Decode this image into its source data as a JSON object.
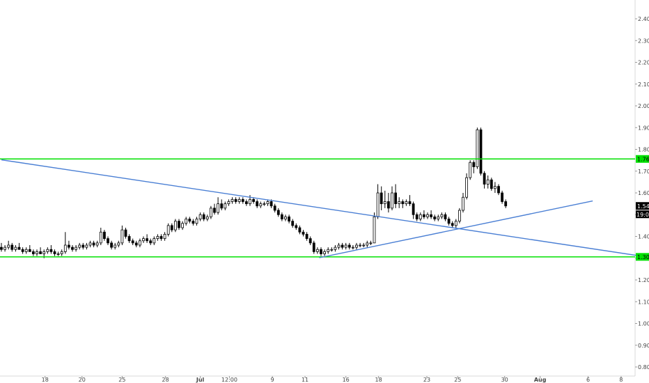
{
  "colors": {
    "background": "#ffffff",
    "support_resistance": "#00e000",
    "trendline": "#4a7fd4",
    "candle_body": "#000000",
    "axis": "#d8d8d8"
  },
  "chart_data": {
    "type": "candlestick",
    "ylim": [
      0.78,
      2.48
    ],
    "y_ticks": [
      0.8,
      0.9,
      1.0,
      1.1,
      1.2,
      1.3,
      1.4,
      1.5,
      1.6,
      1.7,
      1.8,
      1.9,
      2.0,
      2.1,
      2.2,
      2.3,
      2.4
    ],
    "y_tick_labels": [
      "0.80",
      "0.90",
      "1.00",
      "1.10",
      "1.20",
      "1.30",
      "1.40",
      "1.50",
      "1.60",
      "1.70",
      "1.80",
      "1.90",
      "2.00",
      "2.10",
      "2.20",
      "2.30",
      "2.40"
    ],
    "x_tick_labels": [
      "18",
      "20",
      "25",
      "28",
      "Jul",
      "12:00",
      "9",
      "11",
      "16",
      "18",
      "23",
      "25",
      "30",
      "Aug",
      "6",
      "8"
    ],
    "x_tick_bars": [
      12.3,
      22.7,
      34.0,
      46.2,
      56.0,
      64.2,
      76.3,
      85.5,
      97.0,
      106.2,
      119.8,
      128.5,
      141.7,
      151.7,
      165.2,
      174.5
    ],
    "x_range": [
      0,
      185
    ],
    "horizontal_lines": [
      {
        "label": "1.76",
        "price": 1.756
      },
      {
        "label": "1.30",
        "price": 1.306
      }
    ],
    "trendlines": [
      {
        "name": "descending",
        "from": [
          0,
          1.752
        ],
        "to": [
          182,
          1.305
        ]
      },
      {
        "name": "ascending",
        "from": [
          89.5,
          1.302
        ],
        "to": [
          166.5,
          1.563
        ]
      }
    ],
    "last_price_labels": [
      "1.54",
      "19:02"
    ],
    "candles": [
      [
        1.35,
        1.37,
        1.33,
        1.34
      ],
      [
        1.34,
        1.36,
        1.33,
        1.35
      ],
      [
        1.35,
        1.38,
        1.34,
        1.36
      ],
      [
        1.36,
        1.37,
        1.33,
        1.34
      ],
      [
        1.34,
        1.36,
        1.33,
        1.35
      ],
      [
        1.35,
        1.37,
        1.34,
        1.34
      ],
      [
        1.34,
        1.35,
        1.32,
        1.33
      ],
      [
        1.33,
        1.35,
        1.32,
        1.34
      ],
      [
        1.34,
        1.36,
        1.33,
        1.33
      ],
      [
        1.33,
        1.34,
        1.31,
        1.32
      ],
      [
        1.32,
        1.34,
        1.31,
        1.33
      ],
      [
        1.33,
        1.35,
        1.32,
        1.32
      ],
      [
        1.32,
        1.34,
        1.3,
        1.33
      ],
      [
        1.33,
        1.35,
        1.32,
        1.34
      ],
      [
        1.34,
        1.36,
        1.32,
        1.33
      ],
      [
        1.33,
        1.34,
        1.31,
        1.32
      ],
      [
        1.32,
        1.33,
        1.31,
        1.32
      ],
      [
        1.32,
        1.34,
        1.31,
        1.33
      ],
      [
        1.33,
        1.42,
        1.32,
        1.36
      ],
      [
        1.36,
        1.38,
        1.34,
        1.35
      ],
      [
        1.35,
        1.36,
        1.33,
        1.34
      ],
      [
        1.34,
        1.36,
        1.33,
        1.35
      ],
      [
        1.35,
        1.37,
        1.34,
        1.36
      ],
      [
        1.36,
        1.37,
        1.34,
        1.35
      ],
      [
        1.35,
        1.37,
        1.34,
        1.36
      ],
      [
        1.36,
        1.38,
        1.35,
        1.37
      ],
      [
        1.37,
        1.38,
        1.35,
        1.36
      ],
      [
        1.36,
        1.38,
        1.35,
        1.37
      ],
      [
        1.37,
        1.44,
        1.36,
        1.42
      ],
      [
        1.42,
        1.43,
        1.38,
        1.39
      ],
      [
        1.39,
        1.4,
        1.36,
        1.37
      ],
      [
        1.37,
        1.38,
        1.34,
        1.35
      ],
      [
        1.35,
        1.37,
        1.34,
        1.36
      ],
      [
        1.36,
        1.38,
        1.35,
        1.37
      ],
      [
        1.37,
        1.45,
        1.36,
        1.43
      ],
      [
        1.43,
        1.44,
        1.39,
        1.4
      ],
      [
        1.4,
        1.41,
        1.37,
        1.38
      ],
      [
        1.38,
        1.39,
        1.36,
        1.37
      ],
      [
        1.37,
        1.38,
        1.35,
        1.36
      ],
      [
        1.36,
        1.39,
        1.35,
        1.38
      ],
      [
        1.38,
        1.4,
        1.37,
        1.39
      ],
      [
        1.39,
        1.41,
        1.37,
        1.38
      ],
      [
        1.38,
        1.39,
        1.36,
        1.37
      ],
      [
        1.37,
        1.4,
        1.36,
        1.39
      ],
      [
        1.39,
        1.41,
        1.38,
        1.4
      ],
      [
        1.4,
        1.41,
        1.38,
        1.39
      ],
      [
        1.39,
        1.42,
        1.38,
        1.41
      ],
      [
        1.41,
        1.46,
        1.4,
        1.45
      ],
      [
        1.45,
        1.46,
        1.42,
        1.43
      ],
      [
        1.43,
        1.48,
        1.42,
        1.47
      ],
      [
        1.47,
        1.48,
        1.43,
        1.44
      ],
      [
        1.44,
        1.47,
        1.43,
        1.46
      ],
      [
        1.46,
        1.49,
        1.45,
        1.48
      ],
      [
        1.48,
        1.49,
        1.46,
        1.47
      ],
      [
        1.47,
        1.48,
        1.45,
        1.46
      ],
      [
        1.46,
        1.49,
        1.45,
        1.48
      ],
      [
        1.48,
        1.51,
        1.47,
        1.5
      ],
      [
        1.5,
        1.51,
        1.47,
        1.48
      ],
      [
        1.48,
        1.5,
        1.47,
        1.49
      ],
      [
        1.49,
        1.54,
        1.48,
        1.53
      ],
      [
        1.53,
        1.55,
        1.5,
        1.51
      ],
      [
        1.51,
        1.58,
        1.5,
        1.55
      ],
      [
        1.55,
        1.57,
        1.52,
        1.53
      ],
      [
        1.53,
        1.56,
        1.52,
        1.55
      ],
      [
        1.55,
        1.57,
        1.54,
        1.56
      ],
      [
        1.56,
        1.58,
        1.55,
        1.57
      ],
      [
        1.57,
        1.58,
        1.55,
        1.56
      ],
      [
        1.56,
        1.58,
        1.55,
        1.57
      ],
      [
        1.57,
        1.58,
        1.55,
        1.56
      ],
      [
        1.56,
        1.57,
        1.54,
        1.55
      ],
      [
        1.55,
        1.59,
        1.54,
        1.57
      ],
      [
        1.57,
        1.58,
        1.55,
        1.56
      ],
      [
        1.56,
        1.57,
        1.53,
        1.54
      ],
      [
        1.54,
        1.56,
        1.53,
        1.55
      ],
      [
        1.55,
        1.56,
        1.54,
        1.55
      ],
      [
        1.55,
        1.57,
        1.54,
        1.56
      ],
      [
        1.56,
        1.57,
        1.53,
        1.54
      ],
      [
        1.54,
        1.55,
        1.51,
        1.52
      ],
      [
        1.52,
        1.53,
        1.49,
        1.5
      ],
      [
        1.5,
        1.51,
        1.47,
        1.48
      ],
      [
        1.48,
        1.5,
        1.47,
        1.49
      ],
      [
        1.49,
        1.5,
        1.46,
        1.47
      ],
      [
        1.47,
        1.48,
        1.44,
        1.45
      ],
      [
        1.45,
        1.46,
        1.43,
        1.44
      ],
      [
        1.44,
        1.45,
        1.41,
        1.42
      ],
      [
        1.42,
        1.43,
        1.4,
        1.41
      ],
      [
        1.41,
        1.42,
        1.38,
        1.39
      ],
      [
        1.39,
        1.4,
        1.36,
        1.37
      ],
      [
        1.37,
        1.38,
        1.32,
        1.33
      ],
      [
        1.33,
        1.35,
        1.32,
        1.34
      ],
      [
        1.34,
        1.35,
        1.31,
        1.32
      ],
      [
        1.32,
        1.34,
        1.31,
        1.33
      ],
      [
        1.33,
        1.35,
        1.32,
        1.34
      ],
      [
        1.34,
        1.35,
        1.33,
        1.34
      ],
      [
        1.34,
        1.36,
        1.33,
        1.35
      ],
      [
        1.35,
        1.37,
        1.34,
        1.36
      ],
      [
        1.36,
        1.37,
        1.34,
        1.35
      ],
      [
        1.35,
        1.37,
        1.34,
        1.36
      ],
      [
        1.36,
        1.37,
        1.34,
        1.35
      ],
      [
        1.35,
        1.36,
        1.34,
        1.35
      ],
      [
        1.35,
        1.37,
        1.34,
        1.36
      ],
      [
        1.36,
        1.37,
        1.35,
        1.36
      ],
      [
        1.36,
        1.37,
        1.35,
        1.36
      ],
      [
        1.36,
        1.38,
        1.35,
        1.37
      ],
      [
        1.37,
        1.38,
        1.36,
        1.37
      ],
      [
        1.37,
        1.51,
        1.37,
        1.49
      ],
      [
        1.49,
        1.64,
        1.48,
        1.6
      ],
      [
        1.6,
        1.63,
        1.52,
        1.55
      ],
      [
        1.55,
        1.61,
        1.53,
        1.56
      ],
      [
        1.56,
        1.6,
        1.51,
        1.53
      ],
      [
        1.53,
        1.63,
        1.52,
        1.6
      ],
      [
        1.6,
        1.64,
        1.53,
        1.55
      ],
      [
        1.55,
        1.58,
        1.53,
        1.56
      ],
      [
        1.56,
        1.57,
        1.53,
        1.55
      ],
      [
        1.55,
        1.57,
        1.54,
        1.56
      ],
      [
        1.56,
        1.59,
        1.54,
        1.55
      ],
      [
        1.55,
        1.56,
        1.48,
        1.5
      ],
      [
        1.5,
        1.51,
        1.47,
        1.48
      ],
      [
        1.48,
        1.51,
        1.47,
        1.5
      ],
      [
        1.5,
        1.52,
        1.48,
        1.49
      ],
      [
        1.49,
        1.51,
        1.48,
        1.5
      ],
      [
        1.5,
        1.52,
        1.48,
        1.49
      ],
      [
        1.49,
        1.5,
        1.47,
        1.48
      ],
      [
        1.48,
        1.5,
        1.47,
        1.49
      ],
      [
        1.49,
        1.51,
        1.48,
        1.5
      ],
      [
        1.5,
        1.51,
        1.47,
        1.48
      ],
      [
        1.48,
        1.49,
        1.45,
        1.46
      ],
      [
        1.46,
        1.47,
        1.44,
        1.45
      ],
      [
        1.45,
        1.48,
        1.44,
        1.47
      ],
      [
        1.47,
        1.53,
        1.46,
        1.52
      ],
      [
        1.52,
        1.6,
        1.51,
        1.58
      ],
      [
        1.58,
        1.69,
        1.57,
        1.67
      ],
      [
        1.67,
        1.75,
        1.66,
        1.74
      ],
      [
        1.74,
        1.75,
        1.69,
        1.72
      ],
      [
        1.72,
        1.9,
        1.71,
        1.89
      ],
      [
        1.89,
        1.9,
        1.68,
        1.69
      ],
      [
        1.69,
        1.7,
        1.62,
        1.64
      ],
      [
        1.64,
        1.68,
        1.62,
        1.66
      ],
      [
        1.66,
        1.67,
        1.61,
        1.62
      ],
      [
        1.62,
        1.65,
        1.6,
        1.63
      ],
      [
        1.63,
        1.64,
        1.59,
        1.6
      ],
      [
        1.6,
        1.61,
        1.55,
        1.56
      ],
      [
        1.56,
        1.57,
        1.53,
        1.54
      ]
    ]
  }
}
